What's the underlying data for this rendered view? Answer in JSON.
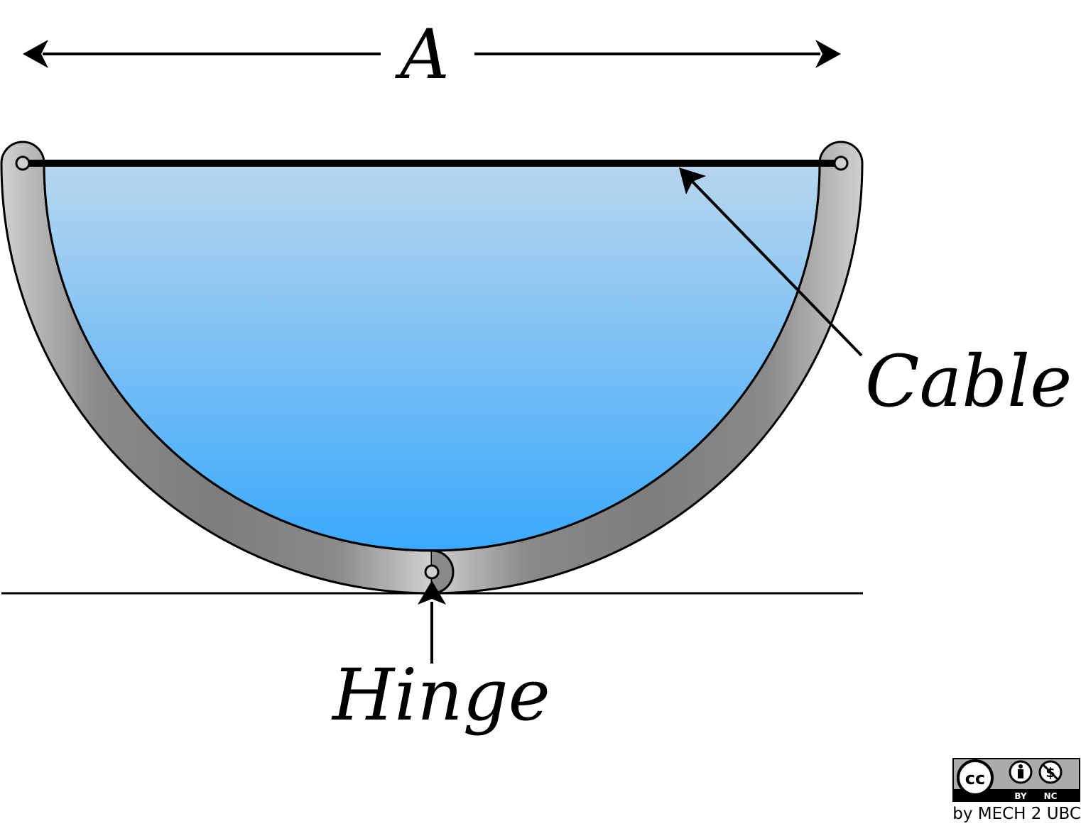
{
  "labels": {
    "dimension": "A",
    "cable": "Cable",
    "hinge": "Hinge"
  },
  "license": {
    "badge_by": "BY",
    "badge_nc": "NC",
    "credit": "by MECH 2 UBC"
  },
  "colors": {
    "water_top": "#b8d6ee",
    "water_bottom": "#3aa9fb",
    "shell_light": "#cbcbcb",
    "shell_dark": "#808080",
    "stroke": "#000000"
  }
}
